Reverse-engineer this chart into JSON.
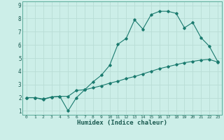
{
  "title": "",
  "xlabel": "Humidex (Indice chaleur)",
  "bg_color": "#cceee8",
  "grid_color": "#b8ddd6",
  "line_color": "#1a7a6e",
  "xlim": [
    -0.5,
    23.5
  ],
  "ylim": [
    0.7,
    9.3
  ],
  "xticks": [
    0,
    1,
    2,
    3,
    4,
    5,
    6,
    7,
    8,
    9,
    10,
    11,
    12,
    13,
    14,
    15,
    16,
    17,
    18,
    19,
    20,
    21,
    22,
    23
  ],
  "yticks": [
    1,
    2,
    3,
    4,
    5,
    6,
    7,
    8,
    9
  ],
  "line1_x": [
    0,
    1,
    2,
    3,
    4,
    5,
    6,
    7,
    8,
    9,
    10,
    11,
    12,
    13,
    14,
    15,
    16,
    17,
    18,
    19,
    20,
    21,
    22,
    23
  ],
  "line1_y": [
    2.0,
    2.0,
    1.85,
    2.05,
    2.1,
    2.1,
    2.55,
    2.6,
    2.75,
    2.9,
    3.1,
    3.25,
    3.45,
    3.6,
    3.8,
    4.0,
    4.2,
    4.35,
    4.5,
    4.65,
    4.75,
    4.85,
    4.9,
    4.7
  ],
  "line2_x": [
    0,
    1,
    2,
    3,
    4,
    5,
    6,
    7,
    8,
    9,
    10,
    11,
    12,
    13,
    14,
    15,
    16,
    17,
    18,
    19,
    20,
    21,
    22,
    23
  ],
  "line2_y": [
    2.0,
    2.0,
    1.9,
    2.05,
    2.1,
    1.0,
    2.0,
    2.6,
    3.2,
    3.7,
    4.45,
    6.05,
    6.5,
    7.9,
    7.2,
    8.3,
    8.55,
    8.55,
    8.4,
    7.3,
    7.7,
    6.55,
    5.9,
    4.75
  ]
}
